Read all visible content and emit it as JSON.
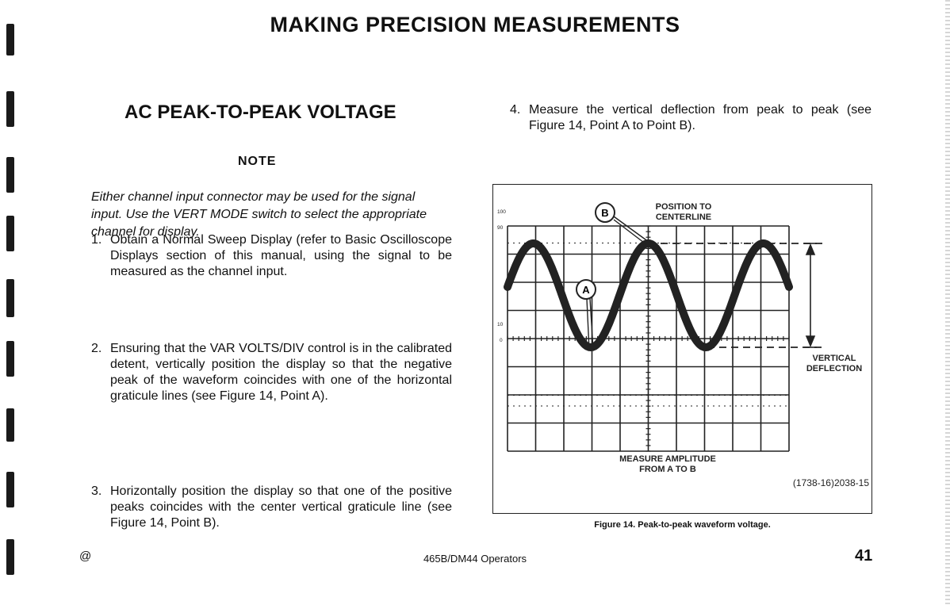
{
  "page": {
    "title": "MAKING PRECISION MEASUREMENTS",
    "section_heading": "AC PEAK-TO-PEAK VOLTAGE",
    "note_heading": "NOTE",
    "note_text": "Either channel input connector may be used for the signal input. Use the VERT MODE switch to select the appropriate channel for display."
  },
  "steps": [
    {
      "num": "1.",
      "text": "Obtain a Normal Sweep Display (refer to Basic Oscilloscope Displays section of this manual, using the signal to be measured as the channel input."
    },
    {
      "num": "2.",
      "text": "Ensuring that the VAR VOLTS/DIV control is in the calibrated detent, vertically position the display so that the negative peak of the waveform coincides with one of the horizontal graticule lines (see Figure 14, Point A)."
    },
    {
      "num": "3.",
      "text": "Horizontally position the display so that one of the positive peaks coincides with the center vertical graticule line (see Figure 14, Point B)."
    },
    {
      "num": "4.",
      "text": "Measure the vertical deflection from peak to peak (see Figure 14, Point A to Point B)."
    }
  ],
  "figure": {
    "label_top_1": "POSITION TO",
    "label_top_2": "CENTERLINE",
    "label_bottom_1": "MEASURE AMPLITUDE",
    "label_bottom_2": "FROM A TO B",
    "label_right_1": "VERTICAL",
    "label_right_2": "DEFLECTION",
    "point_a": "A",
    "point_b": "B",
    "scale_100": "100",
    "scale_90": "90",
    "scale_10": "10",
    "scale_0": "0",
    "code": "(1738-16)2038-15",
    "caption": "Figure 14. Peak-to-peak waveform voltage."
  },
  "footer": {
    "mark": "@",
    "center": "465B/DM44 Operators",
    "page_number": "41"
  }
}
